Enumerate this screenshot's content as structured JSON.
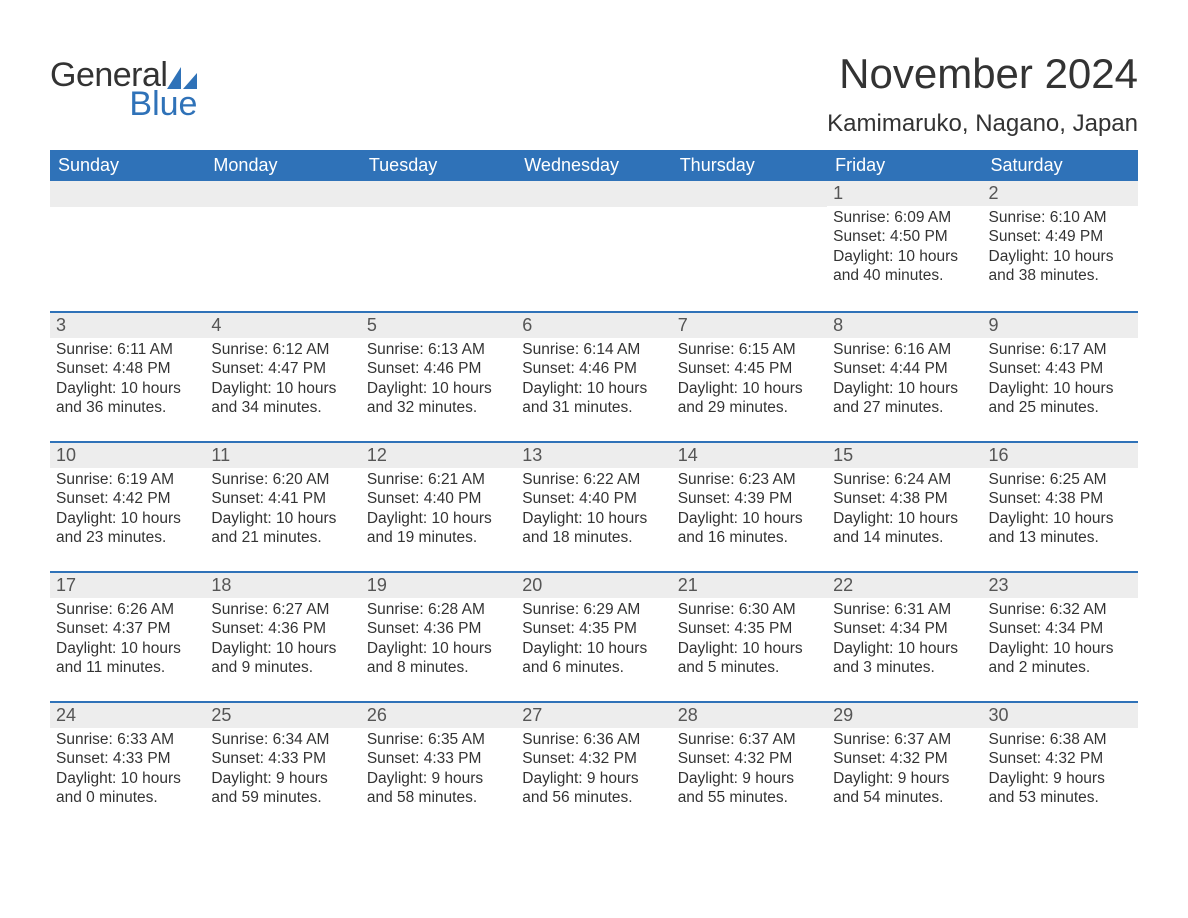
{
  "brand": {
    "part1": "General",
    "part2": "Blue",
    "color": "#2f72b8"
  },
  "title": "November 2024",
  "location": "Kamimaruko, Nagano, Japan",
  "colors": {
    "header_bg": "#2f72b8",
    "header_text": "#ffffff",
    "daynum_bg": "#ededed",
    "body_text": "#333333",
    "page_bg": "#ffffff"
  },
  "weekdays": [
    "Sunday",
    "Monday",
    "Tuesday",
    "Wednesday",
    "Thursday",
    "Friday",
    "Saturday"
  ],
  "weeks": [
    [
      null,
      null,
      null,
      null,
      null,
      {
        "n": "1",
        "sunrise": "Sunrise: 6:09 AM",
        "sunset": "Sunset: 4:50 PM",
        "daylight": "Daylight: 10 hours and 40 minutes."
      },
      {
        "n": "2",
        "sunrise": "Sunrise: 6:10 AM",
        "sunset": "Sunset: 4:49 PM",
        "daylight": "Daylight: 10 hours and 38 minutes."
      }
    ],
    [
      {
        "n": "3",
        "sunrise": "Sunrise: 6:11 AM",
        "sunset": "Sunset: 4:48 PM",
        "daylight": "Daylight: 10 hours and 36 minutes."
      },
      {
        "n": "4",
        "sunrise": "Sunrise: 6:12 AM",
        "sunset": "Sunset: 4:47 PM",
        "daylight": "Daylight: 10 hours and 34 minutes."
      },
      {
        "n": "5",
        "sunrise": "Sunrise: 6:13 AM",
        "sunset": "Sunset: 4:46 PM",
        "daylight": "Daylight: 10 hours and 32 minutes."
      },
      {
        "n": "6",
        "sunrise": "Sunrise: 6:14 AM",
        "sunset": "Sunset: 4:46 PM",
        "daylight": "Daylight: 10 hours and 31 minutes."
      },
      {
        "n": "7",
        "sunrise": "Sunrise: 6:15 AM",
        "sunset": "Sunset: 4:45 PM",
        "daylight": "Daylight: 10 hours and 29 minutes."
      },
      {
        "n": "8",
        "sunrise": "Sunrise: 6:16 AM",
        "sunset": "Sunset: 4:44 PM",
        "daylight": "Daylight: 10 hours and 27 minutes."
      },
      {
        "n": "9",
        "sunrise": "Sunrise: 6:17 AM",
        "sunset": "Sunset: 4:43 PM",
        "daylight": "Daylight: 10 hours and 25 minutes."
      }
    ],
    [
      {
        "n": "10",
        "sunrise": "Sunrise: 6:19 AM",
        "sunset": "Sunset: 4:42 PM",
        "daylight": "Daylight: 10 hours and 23 minutes."
      },
      {
        "n": "11",
        "sunrise": "Sunrise: 6:20 AM",
        "sunset": "Sunset: 4:41 PM",
        "daylight": "Daylight: 10 hours and 21 minutes."
      },
      {
        "n": "12",
        "sunrise": "Sunrise: 6:21 AM",
        "sunset": "Sunset: 4:40 PM",
        "daylight": "Daylight: 10 hours and 19 minutes."
      },
      {
        "n": "13",
        "sunrise": "Sunrise: 6:22 AM",
        "sunset": "Sunset: 4:40 PM",
        "daylight": "Daylight: 10 hours and 18 minutes."
      },
      {
        "n": "14",
        "sunrise": "Sunrise: 6:23 AM",
        "sunset": "Sunset: 4:39 PM",
        "daylight": "Daylight: 10 hours and 16 minutes."
      },
      {
        "n": "15",
        "sunrise": "Sunrise: 6:24 AM",
        "sunset": "Sunset: 4:38 PM",
        "daylight": "Daylight: 10 hours and 14 minutes."
      },
      {
        "n": "16",
        "sunrise": "Sunrise: 6:25 AM",
        "sunset": "Sunset: 4:38 PM",
        "daylight": "Daylight: 10 hours and 13 minutes."
      }
    ],
    [
      {
        "n": "17",
        "sunrise": "Sunrise: 6:26 AM",
        "sunset": "Sunset: 4:37 PM",
        "daylight": "Daylight: 10 hours and 11 minutes."
      },
      {
        "n": "18",
        "sunrise": "Sunrise: 6:27 AM",
        "sunset": "Sunset: 4:36 PM",
        "daylight": "Daylight: 10 hours and 9 minutes."
      },
      {
        "n": "19",
        "sunrise": "Sunrise: 6:28 AM",
        "sunset": "Sunset: 4:36 PM",
        "daylight": "Daylight: 10 hours and 8 minutes."
      },
      {
        "n": "20",
        "sunrise": "Sunrise: 6:29 AM",
        "sunset": "Sunset: 4:35 PM",
        "daylight": "Daylight: 10 hours and 6 minutes."
      },
      {
        "n": "21",
        "sunrise": "Sunrise: 6:30 AM",
        "sunset": "Sunset: 4:35 PM",
        "daylight": "Daylight: 10 hours and 5 minutes."
      },
      {
        "n": "22",
        "sunrise": "Sunrise: 6:31 AM",
        "sunset": "Sunset: 4:34 PM",
        "daylight": "Daylight: 10 hours and 3 minutes."
      },
      {
        "n": "23",
        "sunrise": "Sunrise: 6:32 AM",
        "sunset": "Sunset: 4:34 PM",
        "daylight": "Daylight: 10 hours and 2 minutes."
      }
    ],
    [
      {
        "n": "24",
        "sunrise": "Sunrise: 6:33 AM",
        "sunset": "Sunset: 4:33 PM",
        "daylight": "Daylight: 10 hours and 0 minutes."
      },
      {
        "n": "25",
        "sunrise": "Sunrise: 6:34 AM",
        "sunset": "Sunset: 4:33 PM",
        "daylight": "Daylight: 9 hours and 59 minutes."
      },
      {
        "n": "26",
        "sunrise": "Sunrise: 6:35 AM",
        "sunset": "Sunset: 4:33 PM",
        "daylight": "Daylight: 9 hours and 58 minutes."
      },
      {
        "n": "27",
        "sunrise": "Sunrise: 6:36 AM",
        "sunset": "Sunset: 4:32 PM",
        "daylight": "Daylight: 9 hours and 56 minutes."
      },
      {
        "n": "28",
        "sunrise": "Sunrise: 6:37 AM",
        "sunset": "Sunset: 4:32 PM",
        "daylight": "Daylight: 9 hours and 55 minutes."
      },
      {
        "n": "29",
        "sunrise": "Sunrise: 6:37 AM",
        "sunset": "Sunset: 4:32 PM",
        "daylight": "Daylight: 9 hours and 54 minutes."
      },
      {
        "n": "30",
        "sunrise": "Sunrise: 6:38 AM",
        "sunset": "Sunset: 4:32 PM",
        "daylight": "Daylight: 9 hours and 53 minutes."
      }
    ]
  ]
}
